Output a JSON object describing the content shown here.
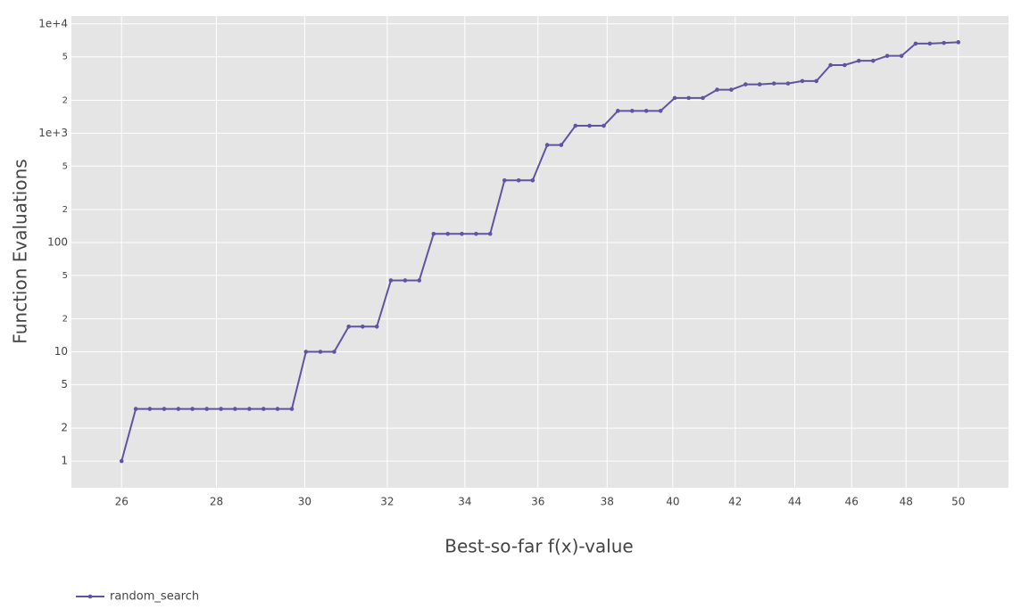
{
  "chart_data": {
    "type": "line",
    "x_title": "Best-so-far f(x)-value",
    "y_title": "Function Evaluations",
    "x": [
      26.0,
      26.29,
      26.58,
      26.88,
      27.18,
      27.48,
      27.79,
      28.1,
      28.41,
      28.73,
      29.05,
      29.37,
      29.7,
      30.03,
      30.37,
      30.7,
      31.05,
      31.39,
      31.74,
      32.09,
      32.45,
      32.81,
      33.18,
      33.55,
      33.92,
      34.3,
      34.68,
      35.07,
      35.46,
      35.85,
      36.26,
      36.66,
      37.07,
      37.48,
      37.9,
      38.32,
      38.75,
      39.18,
      39.62,
      40.06,
      40.5,
      40.95,
      41.41,
      41.87,
      42.34,
      42.81,
      43.29,
      43.77,
      44.26,
      44.75,
      45.25,
      45.75,
      46.26,
      46.78,
      47.3,
      47.83,
      48.36,
      48.9,
      49.44,
      50.0
    ],
    "series": [
      {
        "name": "random_search",
        "color": "#5e55a2",
        "values": [
          1,
          3,
          3,
          3,
          3,
          3,
          3,
          3,
          3,
          3,
          3,
          3,
          3,
          10,
          10,
          10,
          17,
          17,
          17,
          45,
          45,
          45,
          120,
          120,
          120,
          120,
          120,
          370,
          370,
          370,
          780,
          780,
          1170,
          1170,
          1170,
          1600,
          1600,
          1600,
          1600,
          2100,
          2100,
          2100,
          2500,
          2500,
          2800,
          2800,
          2850,
          2850,
          3000,
          3000,
          4200,
          4200,
          4600,
          4600,
          5100,
          5100,
          6600,
          6600,
          6700,
          6800
        ]
      }
    ],
    "xlog": true,
    "ylog": true,
    "xlim": [
      25,
      52
    ],
    "ylim": [
      0.57,
      11800
    ],
    "xticks": [
      26,
      28,
      30,
      32,
      34,
      36,
      38,
      40,
      42,
      44,
      46,
      48,
      50
    ],
    "yticks": [
      1,
      2,
      5,
      10,
      {
        "value": 20,
        "label": "2"
      },
      {
        "value": 50,
        "label": "5"
      },
      100,
      {
        "value": 200,
        "label": "2"
      },
      {
        "value": 500,
        "label": "5"
      },
      {
        "value": 1000,
        "label": "1e+3"
      },
      {
        "value": 2000,
        "label": "2"
      },
      {
        "value": 5000,
        "label": "5"
      },
      {
        "value": 10000,
        "label": "1e+4"
      }
    ],
    "grid": true,
    "legend": "bottom-left"
  }
}
